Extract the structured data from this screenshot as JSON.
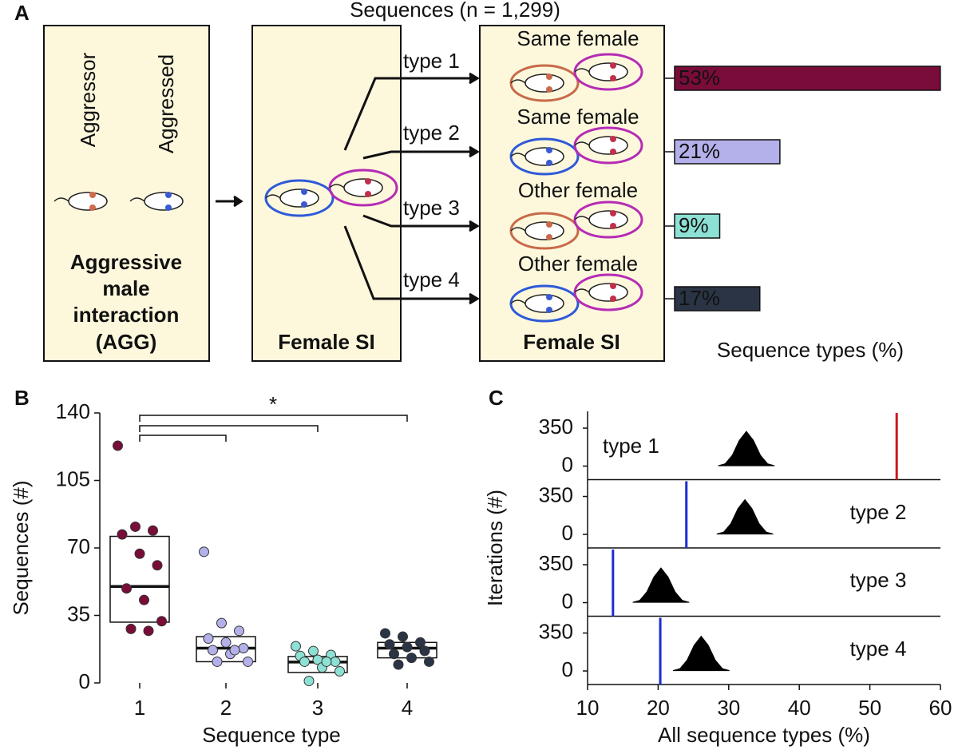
{
  "panel_labels": [
    "A",
    "B",
    "C"
  ],
  "diagram": {
    "title": "Sequences (n = 1,299)",
    "box1": {
      "labels": [
        "Aggressor",
        "Aggressed"
      ],
      "caption": [
        "Aggressive",
        "male",
        "interaction",
        "(AGG)"
      ]
    },
    "box2": {
      "caption": "Female SI"
    },
    "box3": {
      "caption": "Female SI",
      "rows": [
        "Same female",
        "Same female",
        "Other female",
        "Other female"
      ]
    },
    "arrows": [
      "type 1",
      "type 2",
      "type 3",
      "type 4"
    ]
  },
  "chart_data": [
    {
      "type": "hbar",
      "xlabel": "Sequence types (%)",
      "categories": [
        null,
        null,
        null,
        null
      ],
      "values": [
        53,
        21,
        9,
        17
      ],
      "value_labels": [
        "53%",
        "21%",
        "9%",
        "17%"
      ],
      "colors": [
        "#7a0c3a",
        "#b3b0ea",
        "#8de0d4",
        "#2a3444"
      ]
    },
    {
      "type": "strip",
      "xlabel": "Sequence type",
      "ylabel": "Sequences (#)",
      "categories": [
        "1",
        "2",
        "3",
        "4"
      ],
      "ylim": [
        0,
        140
      ],
      "yticks": [
        0,
        35,
        70,
        105,
        140
      ],
      "annotations": [
        "*"
      ],
      "series": [
        {
          "color": "#7a0c3a",
          "values": [
            123,
            81,
            79,
            77,
            67,
            61,
            49,
            43,
            32,
            28,
            27
          ]
        },
        {
          "color": "#b3b0ea",
          "values": [
            68,
            31,
            27,
            23,
            21,
            18,
            17,
            15,
            11,
            11,
            17
          ]
        },
        {
          "color": "#8de0d4",
          "values": [
            19,
            16.5,
            14.5,
            14,
            12,
            11,
            11,
            8,
            6,
            1,
            11
          ]
        },
        {
          "color": "#2a3444",
          "values": [
            25.7,
            24,
            21,
            20,
            18.6,
            16.6,
            15,
            13,
            11,
            9.5
          ]
        }
      ],
      "boxes": [
        {
          "low": 31.5,
          "median": 50,
          "high": 76
        },
        {
          "low": 11,
          "median": 18,
          "high": 24
        },
        {
          "low": 5.4,
          "median": 10.8,
          "high": 13.7
        },
        {
          "low": 13,
          "median": 18,
          "high": 21
        }
      ]
    },
    {
      "type": "density-panels",
      "xlabel": "All sequence types (%)",
      "ylabel": "Iterations (#)",
      "xlim": [
        10,
        60
      ],
      "xticks": [
        10,
        20,
        30,
        40,
        50,
        60
      ],
      "ylim": [
        -125,
        505
      ],
      "yticks": [
        0,
        350
      ],
      "subplots": [
        {
          "label": "type 1",
          "color": "#000000",
          "x": [
            28.5,
            29.5,
            30.5,
            31.5,
            32.5,
            33.5,
            34.5,
            35.5,
            36.5
          ],
          "values": [
            3,
            22,
            99,
            237,
            320,
            237,
            99,
            22,
            3
          ],
          "observed": 53.8,
          "observed_color": "#d0161e"
        },
        {
          "label": "type 2",
          "color": "#000000",
          "x": [
            28.3,
            29.3,
            30.3,
            31.3,
            32.3,
            33.3,
            34.3,
            35.3,
            36.3
          ],
          "values": [
            3,
            22,
            99,
            237,
            320,
            237,
            99,
            22,
            3
          ],
          "observed": 24.0,
          "observed_color": "#1c2bd0"
        },
        {
          "label": "type 3",
          "color": "#000000",
          "x": [
            16.4,
            17.4,
            18.4,
            19.4,
            20.4,
            21.4,
            22.4,
            23.4,
            24.4
          ],
          "values": [
            3,
            22,
            99,
            237,
            320,
            237,
            99,
            22,
            3
          ],
          "observed": 13.6,
          "observed_color": "#1c2bd0"
        },
        {
          "label": "type 4",
          "color": "#000000",
          "x": [
            22.1,
            23.1,
            24.1,
            25.1,
            26.1,
            27.1,
            28.1,
            29.1,
            30.1
          ],
          "values": [
            3,
            22,
            99,
            237,
            320,
            237,
            99,
            22,
            3
          ],
          "observed": 20.3,
          "observed_color": "#1c2bd0"
        }
      ]
    }
  ]
}
